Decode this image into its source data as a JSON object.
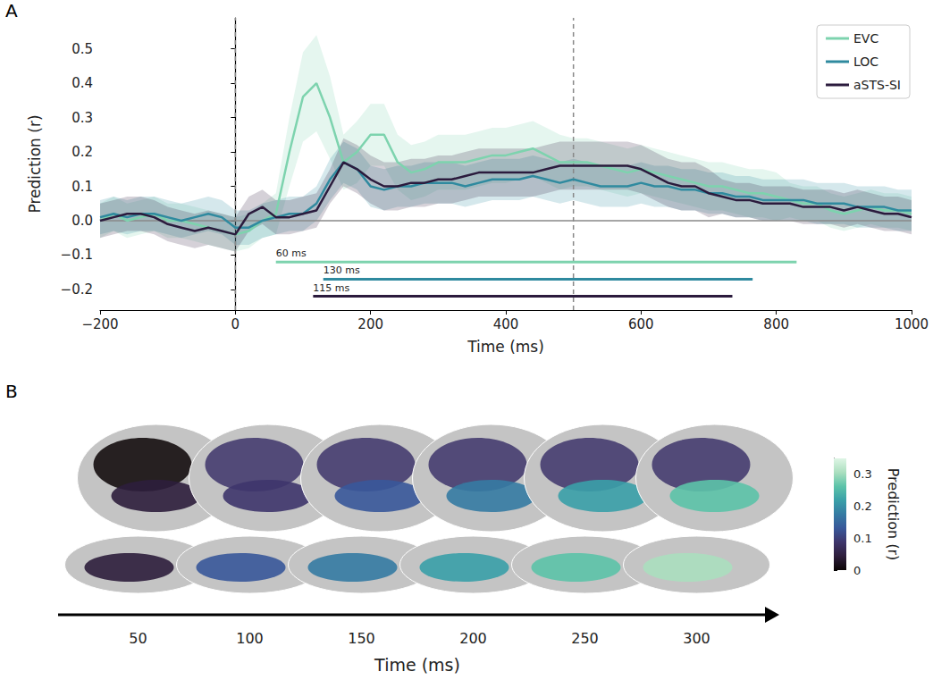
{
  "chart_data": [
    {
      "panel": "A",
      "type": "line",
      "x_label": "Time (ms)",
      "y_label": "Prediction (r)",
      "xlim": [
        -200,
        1000
      ],
      "xticks": [
        {
          "value": -200,
          "label": "−200"
        },
        0,
        200,
        400,
        600,
        800,
        1000
      ],
      "ylim": [
        -0.26,
        0.59
      ],
      "yticks": [
        {
          "value": -0.2,
          "label": "−0.2"
        },
        {
          "value": -0.1,
          "label": "−0.1"
        },
        {
          "value": 0,
          "label": "0.0"
        },
        0.1,
        0.2,
        0.3,
        0.4,
        0.5
      ],
      "grid": false,
      "legend": "upper right",
      "x": [
        -200,
        -180,
        -160,
        -140,
        -120,
        -100,
        -80,
        -60,
        -40,
        -20,
        0,
        20,
        40,
        60,
        80,
        100,
        120,
        140,
        160,
        180,
        200,
        220,
        240,
        260,
        280,
        300,
        320,
        340,
        360,
        380,
        400,
        420,
        440,
        460,
        480,
        500,
        520,
        540,
        560,
        580,
        600,
        620,
        640,
        660,
        680,
        700,
        720,
        740,
        760,
        780,
        800,
        820,
        840,
        860,
        880,
        900,
        920,
        940,
        960,
        980,
        1000
      ],
      "series": [
        {
          "name": "EVC",
          "color": "#7dd3ae",
          "values": [
            0.0,
            0.02,
            0.0,
            0.01,
            0.02,
            0.0,
            0.0,
            -0.01,
            -0.02,
            -0.03,
            -0.04,
            -0.03,
            0.0,
            0.02,
            0.2,
            0.36,
            0.4,
            0.3,
            0.17,
            0.2,
            0.25,
            0.25,
            0.17,
            0.14,
            0.15,
            0.17,
            0.17,
            0.17,
            0.18,
            0.19,
            0.19,
            0.2,
            0.21,
            0.19,
            0.17,
            0.17,
            0.17,
            0.16,
            0.15,
            0.14,
            0.15,
            0.14,
            0.13,
            0.12,
            0.11,
            0.1,
            0.1,
            0.09,
            0.08,
            0.08,
            0.07,
            0.06,
            0.05,
            0.05,
            0.03,
            0.02,
            0.03,
            0.04,
            0.03,
            0.03,
            0.02
          ],
          "error": [
            0.05,
            0.05,
            0.05,
            0.05,
            0.05,
            0.05,
            0.05,
            0.05,
            0.05,
            0.05,
            0.05,
            0.05,
            0.05,
            0.06,
            0.1,
            0.13,
            0.14,
            0.12,
            0.08,
            0.09,
            0.09,
            0.09,
            0.08,
            0.08,
            0.08,
            0.08,
            0.08,
            0.08,
            0.08,
            0.08,
            0.08,
            0.08,
            0.08,
            0.08,
            0.08,
            0.07,
            0.07,
            0.07,
            0.07,
            0.07,
            0.07,
            0.07,
            0.07,
            0.07,
            0.07,
            0.07,
            0.07,
            0.07,
            0.07,
            0.07,
            0.07,
            0.05,
            0.05,
            0.05,
            0.05,
            0.05,
            0.05,
            0.05,
            0.05,
            0.05,
            0.05
          ]
        },
        {
          "name": "LOC",
          "color": "#2f8a9f",
          "values": [
            0.01,
            0.02,
            0.01,
            0.02,
            0.02,
            0.01,
            0.0,
            0.01,
            0.02,
            0.01,
            -0.02,
            -0.02,
            0.0,
            0.01,
            0.02,
            0.02,
            0.05,
            0.12,
            0.17,
            0.15,
            0.1,
            0.09,
            0.1,
            0.1,
            0.11,
            0.11,
            0.11,
            0.1,
            0.11,
            0.12,
            0.12,
            0.12,
            0.13,
            0.12,
            0.11,
            0.12,
            0.11,
            0.1,
            0.1,
            0.1,
            0.11,
            0.1,
            0.1,
            0.09,
            0.09,
            0.08,
            0.08,
            0.07,
            0.07,
            0.06,
            0.06,
            0.06,
            0.06,
            0.05,
            0.05,
            0.05,
            0.04,
            0.04,
            0.04,
            0.03,
            0.03
          ],
          "error": [
            0.05,
            0.05,
            0.05,
            0.05,
            0.05,
            0.05,
            0.05,
            0.05,
            0.05,
            0.05,
            0.05,
            0.05,
            0.05,
            0.05,
            0.05,
            0.05,
            0.05,
            0.06,
            0.06,
            0.06,
            0.06,
            0.06,
            0.06,
            0.06,
            0.06,
            0.06,
            0.06,
            0.06,
            0.06,
            0.06,
            0.06,
            0.06,
            0.06,
            0.06,
            0.06,
            0.06,
            0.06,
            0.06,
            0.06,
            0.06,
            0.06,
            0.06,
            0.06,
            0.06,
            0.06,
            0.06,
            0.06,
            0.06,
            0.06,
            0.06,
            0.06,
            0.06,
            0.06,
            0.06,
            0.06,
            0.06,
            0.06,
            0.06,
            0.06,
            0.06,
            0.06
          ]
        },
        {
          "name": "aSTS-SI",
          "color": "#2b1b3d",
          "values": [
            0.0,
            0.01,
            0.02,
            0.02,
            0.01,
            -0.01,
            -0.02,
            -0.03,
            -0.02,
            -0.03,
            -0.04,
            0.02,
            0.04,
            0.01,
            0.01,
            0.02,
            0.03,
            0.1,
            0.17,
            0.15,
            0.12,
            0.1,
            0.1,
            0.11,
            0.11,
            0.12,
            0.12,
            0.13,
            0.14,
            0.14,
            0.14,
            0.14,
            0.14,
            0.15,
            0.16,
            0.16,
            0.16,
            0.16,
            0.16,
            0.16,
            0.15,
            0.13,
            0.11,
            0.1,
            0.1,
            0.08,
            0.07,
            0.06,
            0.06,
            0.05,
            0.05,
            0.05,
            0.04,
            0.04,
            0.04,
            0.03,
            0.04,
            0.03,
            0.02,
            0.02,
            0.01
          ],
          "error": [
            0.05,
            0.05,
            0.05,
            0.05,
            0.05,
            0.05,
            0.05,
            0.05,
            0.05,
            0.05,
            0.05,
            0.05,
            0.05,
            0.05,
            0.05,
            0.05,
            0.05,
            0.05,
            0.07,
            0.07,
            0.07,
            0.07,
            0.07,
            0.07,
            0.07,
            0.07,
            0.07,
            0.07,
            0.07,
            0.07,
            0.07,
            0.07,
            0.07,
            0.07,
            0.07,
            0.07,
            0.07,
            0.07,
            0.07,
            0.07,
            0.07,
            0.07,
            0.07,
            0.07,
            0.07,
            0.07,
            0.05,
            0.05,
            0.05,
            0.05,
            0.05,
            0.05,
            0.05,
            0.05,
            0.05,
            0.05,
            0.05,
            0.05,
            0.05,
            0.05,
            0.05
          ]
        }
      ],
      "significance": [
        {
          "series": "EVC",
          "start": 60,
          "end": 830,
          "y": -0.12,
          "label": "60 ms"
        },
        {
          "series": "LOC",
          "start": 130,
          "end": 765,
          "y": -0.17,
          "label": "130 ms"
        },
        {
          "series": "aSTS-SI",
          "start": 115,
          "end": 735,
          "y": -0.22,
          "label": "115 ms"
        }
      ],
      "vertical_lines": [
        0,
        500
      ],
      "horizontal_lines": [
        0
      ]
    },
    {
      "panel": "B",
      "type": "image",
      "x_label": "Time (ms)",
      "times": [
        50,
        100,
        150,
        200,
        250,
        300
      ],
      "colorbar": {
        "label": "Prediction (r)",
        "range": [
          0,
          0.35
        ],
        "ticks": [
          0,
          0.1,
          0.2,
          0.3
        ]
      }
    }
  ]
}
